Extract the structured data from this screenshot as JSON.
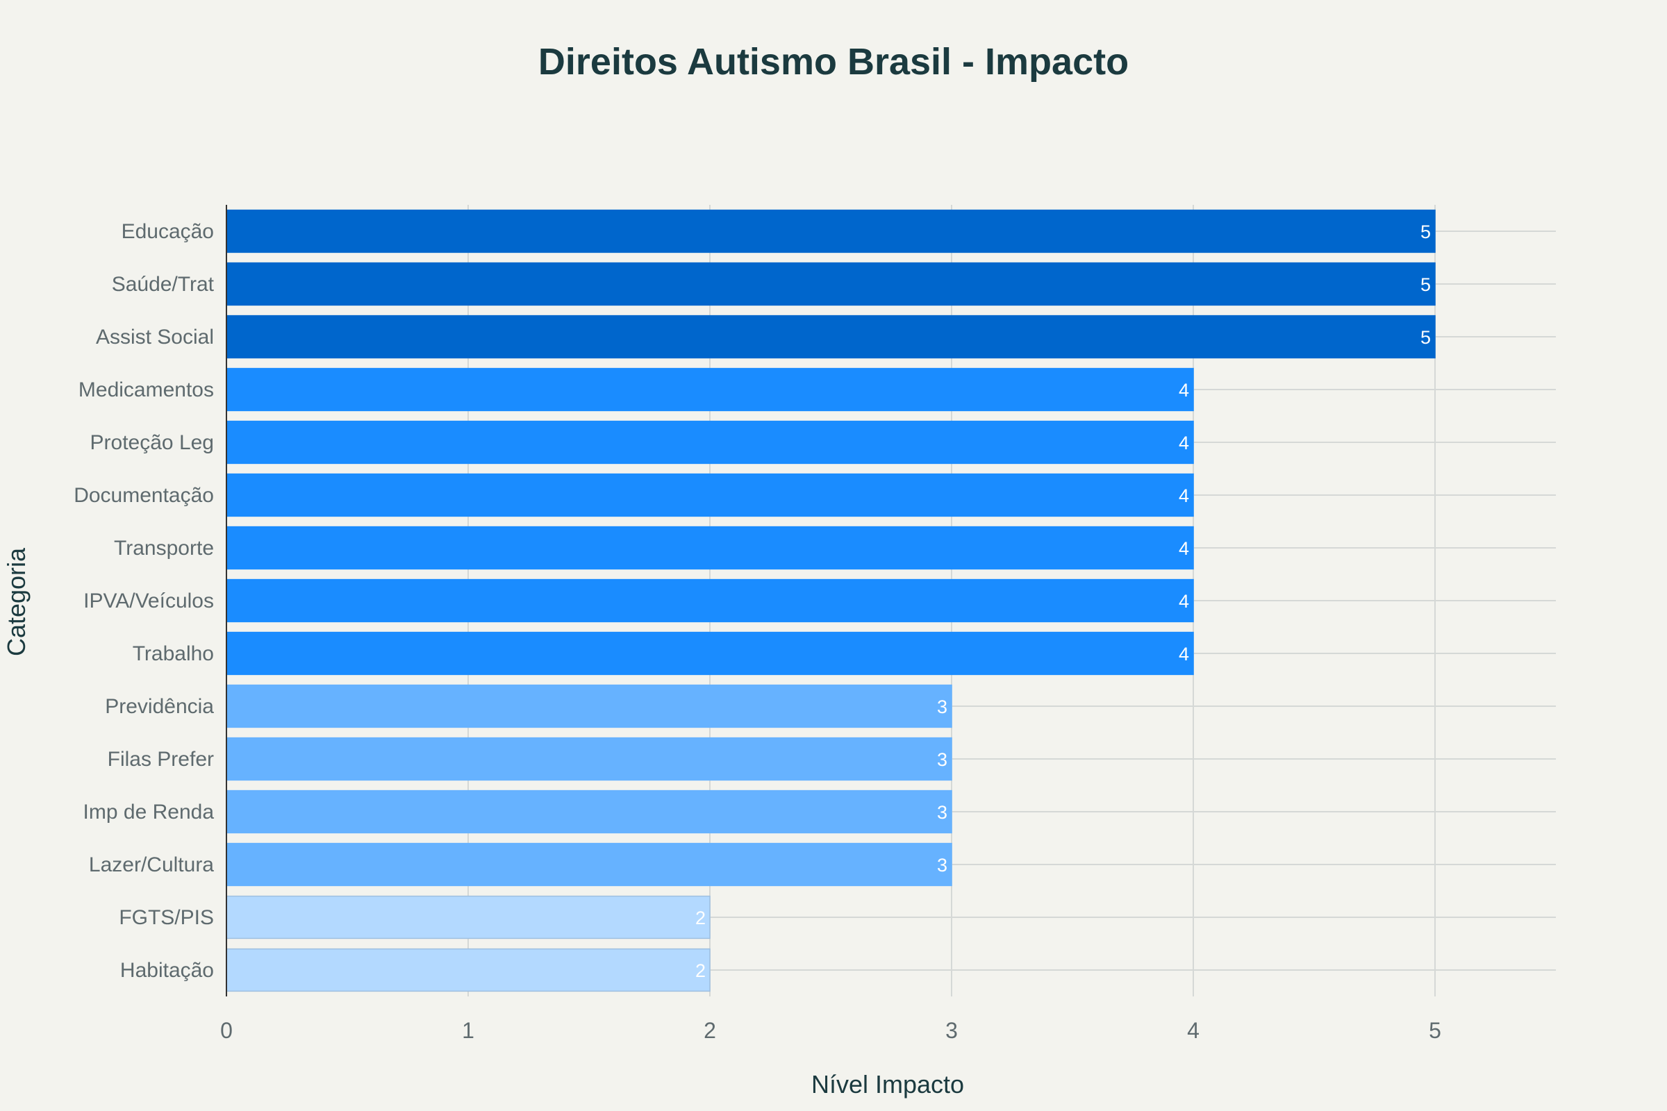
{
  "chart_data": {
    "type": "bar",
    "orientation": "horizontal",
    "title": "Direitos Autismo Brasil - Impacto",
    "xlabel": "Nível Impacto",
    "ylabel": "Categoria",
    "xlim": [
      0,
      5.5
    ],
    "xticks": [
      "0",
      "1",
      "2",
      "3",
      "4",
      "5"
    ],
    "grid": true,
    "categories": [
      "Educação",
      "Saúde/Trat",
      "Assist Social",
      "Medicamentos",
      "Proteção Leg",
      "Documentação",
      "Transporte",
      "IPVA/Veículos",
      "Trabalho",
      "Previdência",
      "Filas Prefer",
      "Imp de Renda",
      "Lazer/Cultura",
      "FGTS/PIS",
      "Habitação"
    ],
    "values": [
      5,
      5,
      5,
      4,
      4,
      4,
      4,
      4,
      4,
      3,
      3,
      3,
      3,
      2,
      2
    ],
    "colors_by_value": {
      "5": "#0066cc",
      "4": "#1a8cff",
      "3": "#66b2ff",
      "2": "#b3d9ff"
    }
  }
}
